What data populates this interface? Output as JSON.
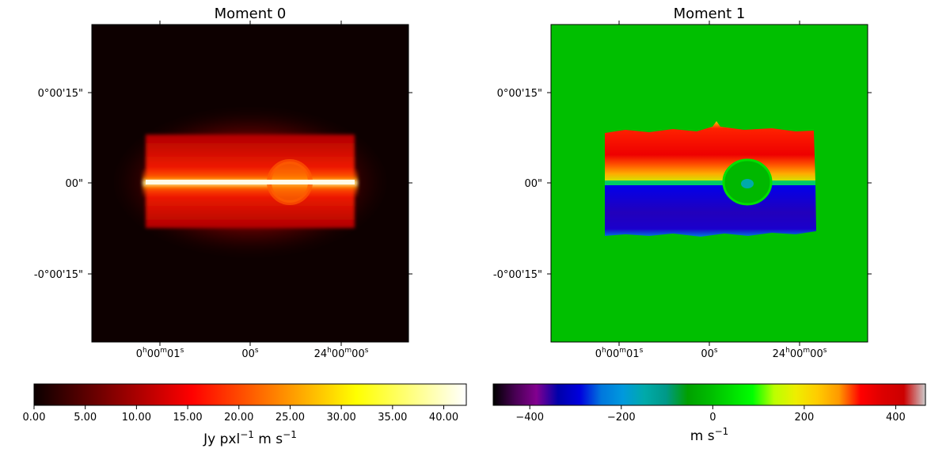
{
  "figure": {
    "panels": [
      {
        "id": "moment0",
        "title": "Moment 0",
        "y_tick_labels": [
          "0°00'15\"",
          "00\"",
          "-0°00'15\""
        ],
        "x_tick_labels": [
          {
            "base": "0",
            "parts": [
              {
                "t": "0",
                "s": "h"
              },
              {
                "t": "00",
                "s": "m"
              },
              {
                "t": "01",
                "s": "s"
              }
            ]
          },
          {
            "base": "",
            "parts": [
              {
                "t": "00",
                "s": "s"
              }
            ]
          },
          {
            "base": "",
            "parts": [
              {
                "t": "24",
                "s": "h"
              },
              {
                "t": "00",
                "s": "m"
              },
              {
                "t": "00",
                "s": "s"
              }
            ]
          }
        ],
        "colormap": "hot",
        "colors": {
          "background": "#0d0000"
        }
      },
      {
        "id": "moment1",
        "title": "Moment 1",
        "y_tick_labels": [
          "0°00'15\"",
          "00\"",
          "-0°00'15\""
        ],
        "x_tick_labels": [
          {
            "base": "0",
            "parts": [
              {
                "t": "0",
                "s": "h"
              },
              {
                "t": "00",
                "s": "m"
              },
              {
                "t": "01",
                "s": "s"
              }
            ]
          },
          {
            "base": "",
            "parts": [
              {
                "t": "00",
                "s": "s"
              }
            ]
          },
          {
            "base": "",
            "parts": [
              {
                "t": "24",
                "s": "h"
              },
              {
                "t": "00",
                "s": "m"
              },
              {
                "t": "00",
                "s": "s"
              }
            ]
          }
        ],
        "colormap": "nipy_spectral",
        "colors": {
          "background": "#00bf00"
        }
      }
    ],
    "colorbars": [
      {
        "id": "cbar0",
        "colormap": "hot",
        "range": [
          0,
          42.2
        ],
        "ticks": [
          0,
          5,
          10,
          15,
          20,
          25,
          30,
          35,
          40
        ],
        "tick_labels": [
          "0.00",
          "5.00",
          "10.00",
          "15.00",
          "20.00",
          "25.00",
          "30.00",
          "35.00",
          "40.00"
        ],
        "label": {
          "parts": [
            {
              "t": "Jy pxl"
            },
            {
              "t": "−1",
              "sup": true
            },
            {
              "t": " m s"
            },
            {
              "t": "−1",
              "sup": true
            }
          ]
        }
      },
      {
        "id": "cbar1",
        "colormap": "nipy_spectral",
        "range": [
          -480,
          465
        ],
        "ticks": [
          -400,
          -200,
          0,
          200,
          400
        ],
        "tick_labels": [
          "−400",
          "−200",
          "0",
          "200",
          "400"
        ],
        "label": {
          "parts": [
            {
              "t": "m s"
            },
            {
              "t": "−1",
              "sup": true
            }
          ]
        }
      }
    ]
  },
  "chart_data": [
    {
      "type": "heatmap",
      "title": "Moment 0",
      "colormap": "hot",
      "value_range": [
        0,
        42.2
      ],
      "colorbar_label": "Jy pxl−1 m s−1",
      "features": {
        "disk_peak_value": 40,
        "ring_value": 25,
        "envelope_value": 12
      }
    },
    {
      "type": "heatmap",
      "title": "Moment 1",
      "colormap": "nipy_spectral",
      "value_range": [
        -480,
        465
      ],
      "colorbar_label": "m s−1",
      "features": {
        "upper_half_velocity": 360,
        "lower_half_velocity": -330,
        "background_velocity": 0
      }
    }
  ]
}
